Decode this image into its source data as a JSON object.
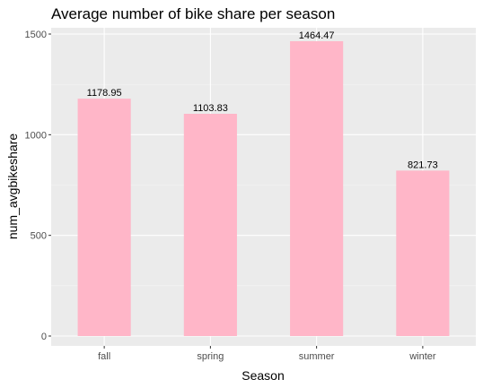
{
  "chart_data": {
    "type": "bar",
    "title": "Average number of bike share per season",
    "xlabel": "Season",
    "ylabel": "num_avgbikeshare",
    "categories": [
      "fall",
      "spring",
      "summer",
      "winter"
    ],
    "values": [
      1178.95,
      1103.83,
      1464.47,
      821.73
    ],
    "data_labels": [
      "1178.95",
      "1103.83",
      "1464.47",
      "821.73"
    ],
    "y_ticks": [
      0,
      500,
      1000,
      1500
    ],
    "y_tick_labels": [
      "0",
      "500",
      "1000",
      "1500"
    ],
    "ylim": [
      0,
      1538
    ],
    "grid": true,
    "legend": "none",
    "colors": {
      "bar": "#ffb6c8",
      "panel": "#ebebeb",
      "grid_major": "#ffffff",
      "grid_minor": "#f5f5f5",
      "tick": "#4d4d4d"
    }
  }
}
